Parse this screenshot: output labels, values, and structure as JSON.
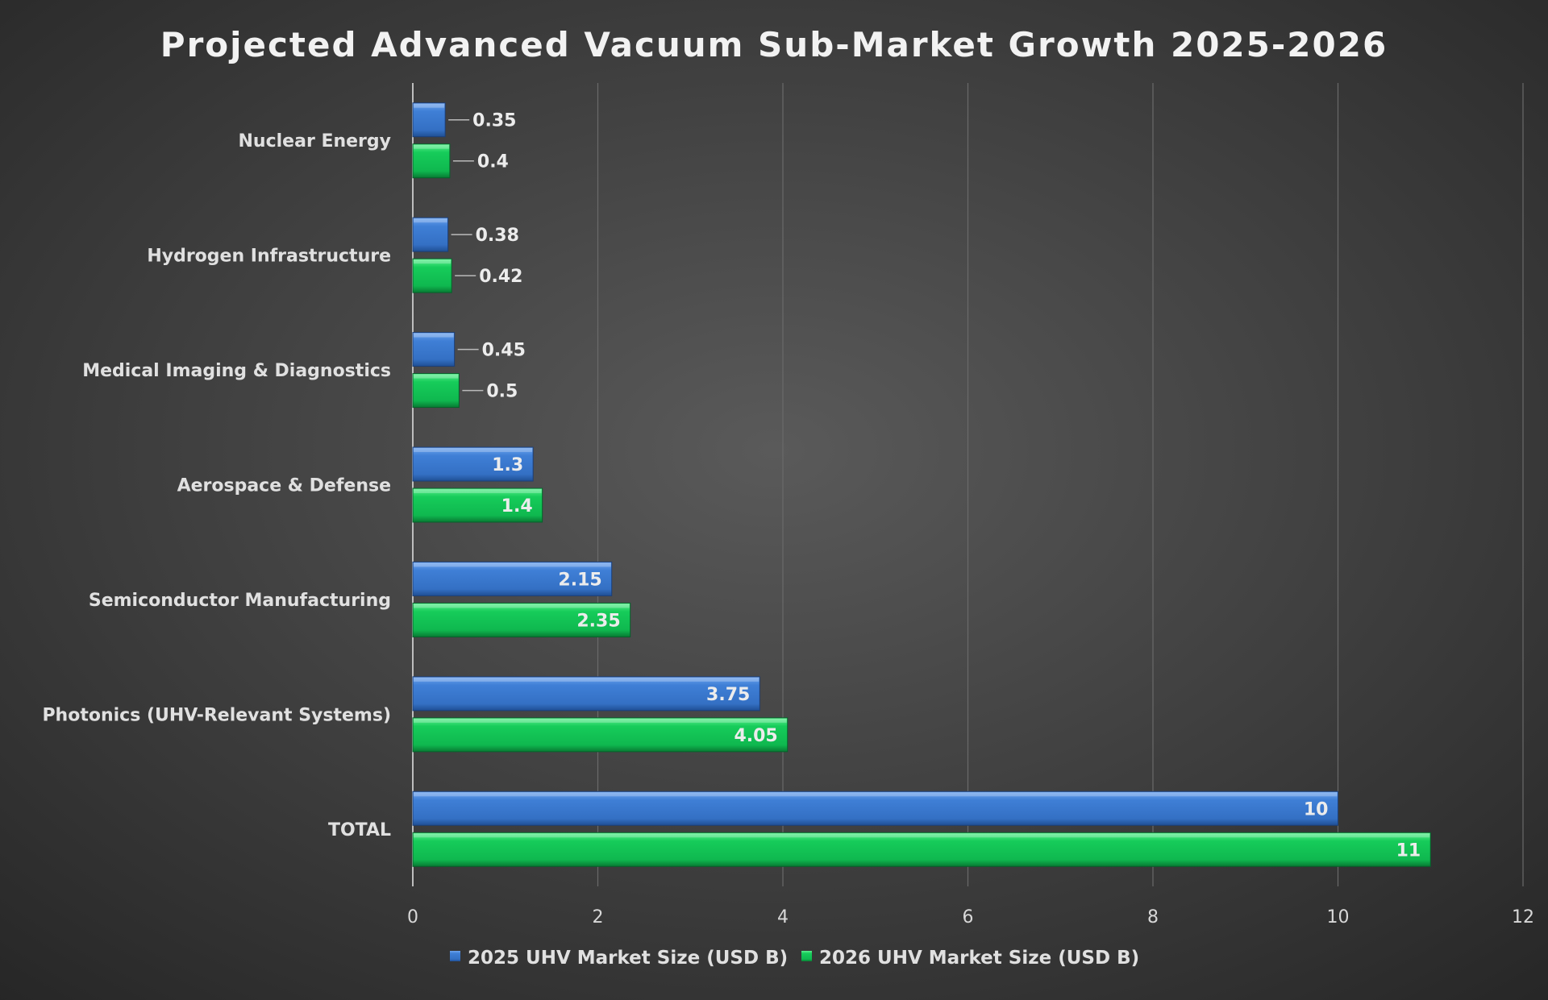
{
  "chart_data": {
    "type": "bar",
    "orientation": "horizontal",
    "title": "Projected Advanced Vacuum Sub-Market Growth 2025-2026",
    "categories": [
      "Nuclear Energy",
      "Hydrogen Infrastructure",
      "Medical Imaging & Diagnostics",
      "Aerospace & Defense",
      "Semiconductor Manufacturing",
      "Photonics (UHV-Relevant Systems)",
      "TOTAL"
    ],
    "series": [
      {
        "name": "2025 UHV Market Size (USD B)",
        "color": "#3a78d0",
        "values": [
          0.35,
          0.38,
          0.45,
          1.3,
          2.15,
          3.75,
          10
        ]
      },
      {
        "name": "2026 UHV Market Size (USD B)",
        "color": "#10c050",
        "values": [
          0.4,
          0.42,
          0.5,
          1.4,
          2.35,
          4.05,
          11
        ]
      }
    ],
    "xlim": [
      0,
      12
    ],
    "xticks": [
      "0",
      "2",
      "4",
      "6",
      "8",
      "10",
      "12"
    ],
    "xlabel": "",
    "ylabel": "",
    "grid": true,
    "legend": "bottom",
    "background": "dark radial gradient"
  }
}
